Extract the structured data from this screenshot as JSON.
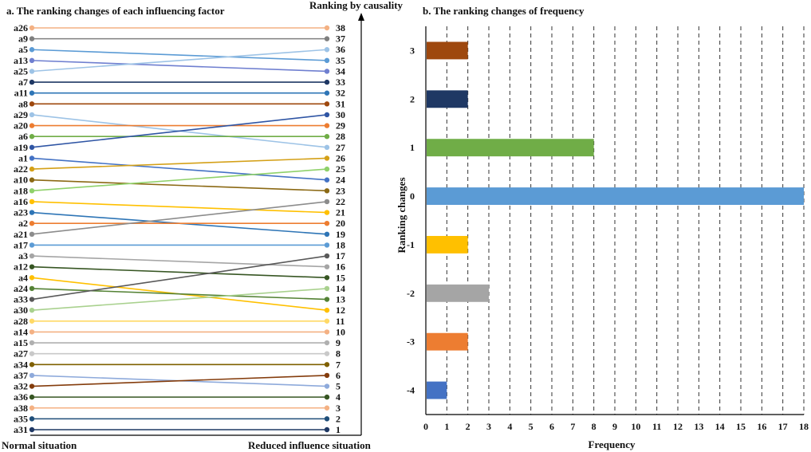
{
  "chart_data": [
    {
      "type": "slope",
      "title": "a. The ranking changes of each influencing factor",
      "xlabel_left": "Normal situation",
      "xlabel_right": "Reduced influence situation",
      "ylabel": "Ranking by causality",
      "right_ticks": [
        "38",
        "37",
        "36",
        "35",
        "34",
        "33",
        "32",
        "31",
        "30",
        "29",
        "28",
        "27",
        "26",
        "25",
        "24",
        "23",
        "22",
        "21",
        "20",
        "19",
        "18",
        "17",
        "16",
        "15",
        "14",
        "13",
        "12",
        "11",
        "10",
        "9",
        "8",
        "7",
        "6",
        "5",
        "4",
        "3",
        "2",
        "1"
      ],
      "series": [
        {
          "name": "a26",
          "from": 38,
          "to": 38,
          "color": "#f4b183"
        },
        {
          "name": "a9",
          "from": 37,
          "to": 37,
          "color": "#7f7f7f"
        },
        {
          "name": "a5",
          "from": 36,
          "to": 35,
          "color": "#5b9bd5"
        },
        {
          "name": "a13",
          "from": 35,
          "to": 34,
          "color": "#6f7fd0"
        },
        {
          "name": "a25",
          "from": 34,
          "to": 36,
          "color": "#9dc3e6"
        },
        {
          "name": "a7",
          "from": 33,
          "to": 33,
          "color": "#1f3864"
        },
        {
          "name": "a11",
          "from": 32,
          "to": 32,
          "color": "#2e75b6"
        },
        {
          "name": "a8",
          "from": 31,
          "to": 31,
          "color": "#9e480e"
        },
        {
          "name": "a29",
          "from": 30,
          "to": 27,
          "color": "#9dc3e6"
        },
        {
          "name": "a20",
          "from": 29,
          "to": 29,
          "color": "#ed7d31"
        },
        {
          "name": "a6",
          "from": 28,
          "to": 28,
          "color": "#70ad47"
        },
        {
          "name": "a19",
          "from": 27,
          "to": 30,
          "color": "#2f55a4"
        },
        {
          "name": "a1",
          "from": 26,
          "to": 24,
          "color": "#4472c4"
        },
        {
          "name": "a22",
          "from": 25,
          "to": 26,
          "color": "#d4a017"
        },
        {
          "name": "a10",
          "from": 24,
          "to": 23,
          "color": "#8b6914"
        },
        {
          "name": "a18",
          "from": 23,
          "to": 25,
          "color": "#8fd16a"
        },
        {
          "name": "a16",
          "from": 22,
          "to": 21,
          "color": "#ffc000"
        },
        {
          "name": "a23",
          "from": 21,
          "to": 19,
          "color": "#2e75b6"
        },
        {
          "name": "a2",
          "from": 20,
          "to": 20,
          "color": "#ed7d31"
        },
        {
          "name": "a21",
          "from": 19,
          "to": 22,
          "color": "#8c8c8c"
        },
        {
          "name": "a17",
          "from": 18,
          "to": 18,
          "color": "#5b9bd5"
        },
        {
          "name": "a3",
          "from": 17,
          "to": 16,
          "color": "#a5a5a5"
        },
        {
          "name": "a12",
          "from": 16,
          "to": 15,
          "color": "#375623"
        },
        {
          "name": "a4",
          "from": 15,
          "to": 12,
          "color": "#ffc000"
        },
        {
          "name": "a24",
          "from": 14,
          "to": 13,
          "color": "#548235"
        },
        {
          "name": "a33",
          "from": 13,
          "to": 17,
          "color": "#595959"
        },
        {
          "name": "a30",
          "from": 12,
          "to": 14,
          "color": "#a9d18e"
        },
        {
          "name": "a28",
          "from": 11,
          "to": 11,
          "color": "#ffd966"
        },
        {
          "name": "a14",
          "from": 10,
          "to": 10,
          "color": "#f4b183"
        },
        {
          "name": "a15",
          "from": 9,
          "to": 9,
          "color": "#b0b0b0"
        },
        {
          "name": "a27",
          "from": 8,
          "to": 8,
          "color": "#c9c9c9"
        },
        {
          "name": "a34",
          "from": 7,
          "to": 7,
          "color": "#7f6000"
        },
        {
          "name": "a37",
          "from": 6,
          "to": 5,
          "color": "#8eaadb"
        },
        {
          "name": "a32",
          "from": 5,
          "to": 6,
          "color": "#843c0c"
        },
        {
          "name": "a36",
          "from": 4,
          "to": 4,
          "color": "#375623"
        },
        {
          "name": "a38",
          "from": 3,
          "to": 3,
          "color": "#f4b183"
        },
        {
          "name": "a35",
          "from": 2,
          "to": 2,
          "color": "#1f4e79"
        },
        {
          "name": "a31",
          "from": 1,
          "to": 1,
          "color": "#1f3864"
        }
      ]
    },
    {
      "type": "bar",
      "orientation": "horizontal",
      "title": "b. The ranking changes of frequency",
      "xlabel": "Frequency",
      "ylabel": "Ranking changes",
      "xlim": [
        0,
        18
      ],
      "xticks": [
        "0",
        "1",
        "2",
        "3",
        "4",
        "5",
        "6",
        "7",
        "8",
        "9",
        "10",
        "11",
        "12",
        "13",
        "14",
        "15",
        "16",
        "17",
        "18"
      ],
      "grid": "vertical-dashed",
      "categories": [
        "3",
        "2",
        "1",
        "0",
        "-1",
        "-2",
        "-3",
        "-4"
      ],
      "values": [
        2,
        2,
        8,
        18,
        2,
        3,
        2,
        1
      ],
      "colors": [
        "#9e480e",
        "#1f3864",
        "#70ad47",
        "#5b9bd5",
        "#ffc000",
        "#a5a5a5",
        "#ed7d31",
        "#4472c4"
      ]
    }
  ]
}
